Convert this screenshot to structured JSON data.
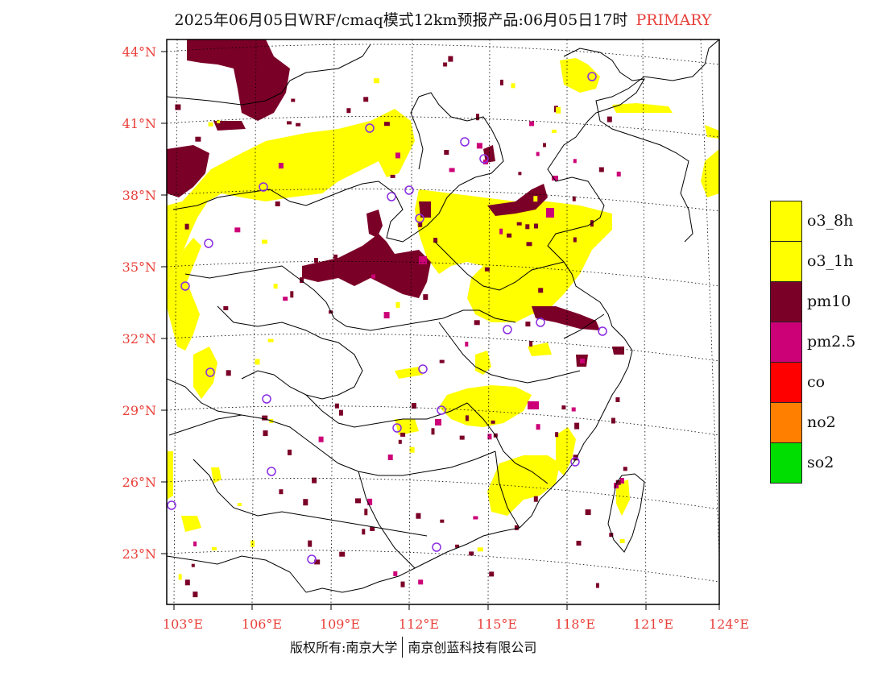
{
  "title": {
    "main": "2025年06月05日WRF/cmaq模式12km预报产品:06月05日17时",
    "primary": "PRIMARY"
  },
  "axes": {
    "lon_labels": [
      "103°E",
      "106°E",
      "109°E",
      "112°E",
      "115°E",
      "118°E",
      "121°E",
      "124°E"
    ],
    "lat_labels": [
      "44°N",
      "41°N",
      "38°N",
      "35°N",
      "32°N",
      "29°N",
      "26°N",
      "23°N"
    ],
    "lon_range": [
      102.7,
      124.0
    ],
    "lat_range": [
      21.7,
      44.5
    ]
  },
  "legend": {
    "items": [
      {
        "label": "o3_8h",
        "color": "#ffff00"
      },
      {
        "label": "o3_1h",
        "color": "#ffff00"
      },
      {
        "label": "pm10",
        "color": "#7b0027"
      },
      {
        "label": "pm2.5",
        "color": "#cc0077"
      },
      {
        "label": "co",
        "color": "#ff0000"
      },
      {
        "label": "no2",
        "color": "#ff7f00"
      },
      {
        "label": "so2",
        "color": "#00dd00"
      }
    ]
  },
  "footer": {
    "left": "版权所有:南京大学",
    "right": "南京创蓝科技有限公司"
  },
  "colors": {
    "o3": "#ffff00",
    "pm10": "#7b0027",
    "pm25": "#cc0077",
    "station": "#8a2be2",
    "tick_label": "#e8403a"
  }
}
